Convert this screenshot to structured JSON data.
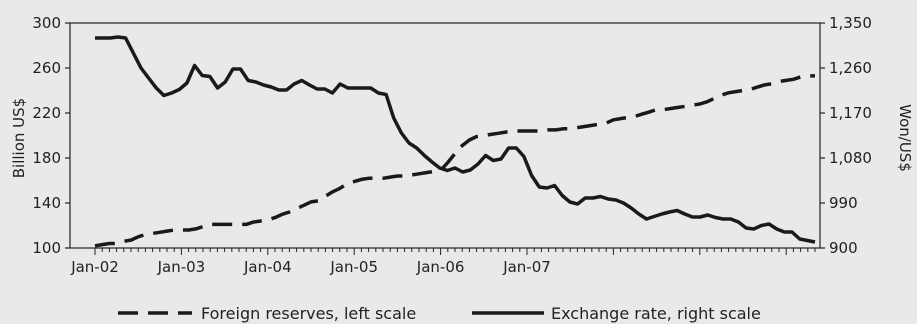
{
  "chart_data": {
    "type": "line",
    "title": "",
    "x_tick_labels": [
      "Jan-02",
      "Jan-03",
      "Jan-04",
      "Jan-05",
      "Jan-06",
      "Jan-07"
    ],
    "y_left": {
      "label": "Billion US$",
      "min": 100,
      "max": 300,
      "ticks": [
        "100",
        "140",
        "180",
        "220",
        "260",
        "300"
      ]
    },
    "y_right": {
      "label": "Won/US$",
      "min": 900,
      "max": 1350,
      "ticks": [
        "900",
        "990",
        "1,080",
        "1,170",
        "1,260",
        "1,350"
      ]
    },
    "grid": false,
    "legend_position": "bottom",
    "series": [
      {
        "name": "Foreign reserves, left scale",
        "axis": "left",
        "style": "dashed",
        "color": "#1a1a1a",
        "values": [
          102,
          103,
          104,
          104,
          106,
          107,
          110,
          112,
          113,
          114,
          115,
          116,
          116,
          116,
          117,
          119,
          121,
          121,
          121,
          121,
          121,
          121,
          123,
          124,
          125,
          127,
          130,
          132,
          135,
          138,
          141,
          142,
          146,
          150,
          153,
          157,
          159,
          161,
          162,
          162,
          162,
          163,
          164,
          164,
          165,
          166,
          167,
          168,
          169,
          176,
          184,
          191,
          196,
          199,
          200,
          201,
          202,
          203,
          204,
          204,
          204,
          204,
          204,
          205,
          205,
          206,
          206,
          207,
          208,
          209,
          210,
          211,
          214,
          215,
          216,
          217,
          219,
          221,
          223,
          223,
          224,
          225,
          226,
          227,
          228,
          230,
          233,
          236,
          238,
          239,
          240,
          241,
          243,
          245,
          246,
          248,
          249,
          250,
          252,
          253,
          253
        ]
      },
      {
        "name": "Exchange rate, right scale",
        "axis": "right",
        "style": "solid",
        "color": "#1a1a1a",
        "values": [
          1320,
          1320,
          1320,
          1322,
          1320,
          1290,
          1260,
          1240,
          1220,
          1205,
          1210,
          1217,
          1230,
          1265,
          1245,
          1243,
          1220,
          1232,
          1258,
          1258,
          1235,
          1232,
          1226,
          1222,
          1216,
          1216,
          1228,
          1235,
          1226,
          1218,
          1218,
          1210,
          1228,
          1220,
          1220,
          1220,
          1220,
          1210,
          1207,
          1160,
          1130,
          1110,
          1100,
          1085,
          1072,
          1060,
          1055,
          1060,
          1052,
          1056,
          1068,
          1085,
          1075,
          1078,
          1100,
          1100,
          1083,
          1045,
          1022,
          1020,
          1025,
          1005,
          992,
          988,
          1000,
          1000,
          1003,
          998,
          996,
          990,
          980,
          968,
          958,
          963,
          968,
          972,
          975,
          968,
          962,
          962,
          966,
          961,
          958,
          958,
          952,
          940,
          938,
          945,
          948,
          938,
          932,
          932,
          918,
          915,
          912
        ]
      }
    ]
  }
}
